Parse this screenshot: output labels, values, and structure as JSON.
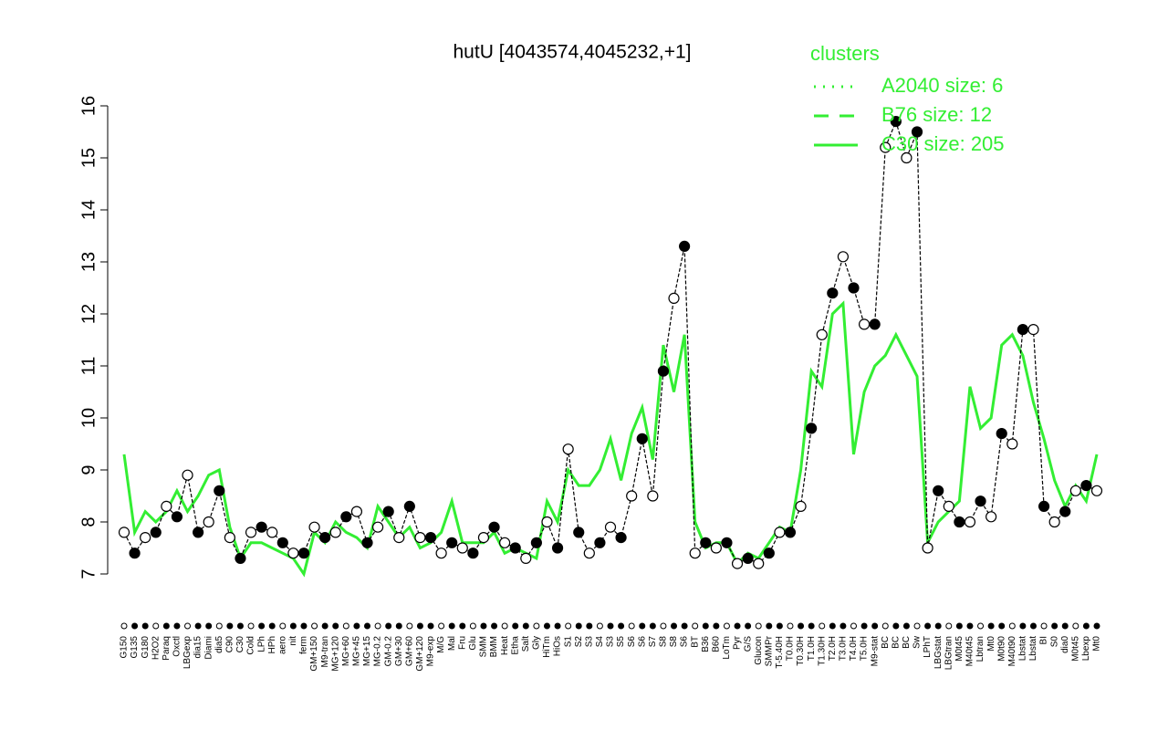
{
  "chart_data": {
    "type": "line",
    "title": "hutU [4043574,4045232,+1]",
    "categories": [
      "G150",
      "G135",
      "G180",
      "H2O2",
      "Paraq",
      "Oxctl",
      "LBGexp",
      "dia15",
      "Diami",
      "dia5",
      "C90",
      "C30",
      "Cold",
      "LPh",
      "HPh",
      "aero",
      "nit",
      "ferm",
      "GM+150",
      "M9-tran",
      "MG+120",
      "MG+60",
      "MG+45",
      "MG+15",
      "MG-0.2",
      "GM-0.2",
      "GM+30",
      "GM+60",
      "GM+120",
      "M9-exp",
      "M/G",
      "Mal",
      "Fru",
      "Glu",
      "SMM",
      "BMM",
      "Heat",
      "Etha",
      "Salt",
      "Gly",
      "HiTm",
      "HiOs",
      "S1",
      "S2",
      "S3",
      "S4",
      "S3",
      "S5",
      "S6",
      "S6",
      "S7",
      "S8",
      "S8",
      "S6",
      "BT",
      "B36",
      "B60",
      "LoTm",
      "Pyr",
      "G/S",
      "Glucon",
      "SMMPr",
      "T-5.40H",
      "T0.0H",
      "T0.30H",
      "T1.0H",
      "T1.30H",
      "T2.0H",
      "T3.0H",
      "T4.0H",
      "T5.0H",
      "M9-stat",
      "BC",
      "BC",
      "BC",
      "Sw",
      "LPhT",
      "LBGstat",
      "LBGtran",
      "M0t45",
      "M40t45",
      "Lbtran",
      "Mt0",
      "M0t90",
      "M40t90",
      "Lbstat",
      "Lbstat",
      "BI",
      "S0",
      "dia0",
      "M0t45",
      "Lbexp",
      "Mt0"
    ],
    "series": [
      {
        "color": "#000000",
        "values": [
          7.8,
          7.4,
          7.7,
          7.8,
          8.3,
          8.1,
          8.9,
          7.8,
          8.0,
          8.6,
          7.7,
          7.3,
          7.8,
          7.9,
          7.8,
          7.6,
          7.4,
          7.4,
          7.9,
          7.7,
          7.8,
          8.1,
          8.2,
          7.6,
          7.9,
          8.2,
          7.7,
          8.3,
          7.7,
          7.7,
          7.4,
          7.6,
          7.5,
          7.4,
          7.7,
          7.9,
          7.6,
          7.5,
          7.3,
          7.6,
          8.0,
          7.5,
          9.4,
          7.8,
          7.4,
          7.6,
          7.9,
          7.7,
          8.5,
          9.6,
          8.5,
          10.9,
          12.3,
          13.3,
          7.4,
          7.6,
          7.5,
          7.6,
          7.2,
          7.3,
          7.2,
          7.4,
          7.8,
          7.8,
          8.3,
          9.8,
          11.6,
          12.4,
          13.1,
          12.5,
          11.8,
          11.8,
          15.2,
          15.7,
          15.0,
          15.5,
          7.5,
          8.6,
          8.3,
          8.0,
          8.0,
          8.4,
          8.1,
          9.7,
          9.5,
          11.7,
          11.7,
          8.3,
          8.0,
          8.2,
          8.6,
          8.7,
          8.6
        ]
      },
      {
        "color": "#33ee33",
        "values": [
          9.3,
          7.8,
          8.2,
          8.0,
          8.2,
          8.6,
          8.2,
          8.5,
          8.9,
          9.0,
          7.9,
          7.3,
          7.6,
          7.6,
          7.5,
          7.4,
          7.3,
          7.0,
          7.8,
          7.6,
          8.0,
          7.8,
          7.7,
          7.5,
          8.3,
          8.0,
          7.7,
          7.9,
          7.5,
          7.6,
          7.8,
          8.4,
          7.6,
          7.6,
          7.6,
          7.8,
          7.4,
          7.5,
          7.4,
          7.3,
          8.4,
          8.0,
          9.0,
          8.7,
          8.7,
          9.0,
          9.6,
          8.8,
          9.7,
          10.2,
          9.2,
          11.4,
          10.5,
          11.6,
          8.0,
          7.5,
          7.6,
          7.6,
          7.2,
          7.4,
          7.3,
          7.6,
          7.9,
          7.8,
          9.0,
          10.9,
          10.6,
          12.0,
          12.2,
          9.3,
          10.5,
          11.0,
          11.2,
          11.6,
          11.2,
          10.8,
          7.6,
          8.0,
          8.2,
          8.4,
          10.6,
          9.8,
          10.0,
          11.4,
          11.6,
          11.2,
          10.3,
          9.6,
          8.8,
          8.3,
          8.7,
          8.4,
          9.3
        ]
      }
    ],
    "ylim": [
      7,
      16
    ],
    "yticks": [
      7,
      8,
      9,
      10,
      11,
      12,
      13,
      14,
      15,
      16
    ],
    "legend": {
      "title": "clusters",
      "color": "#33ee33",
      "entries": [
        {
          "label": "A2040 size: 6",
          "dash": "dotted"
        },
        {
          "label": "B76 size: 12",
          "dash": "dashed"
        },
        {
          "label": "C30 size: 205",
          "dash": "solid"
        }
      ]
    }
  }
}
